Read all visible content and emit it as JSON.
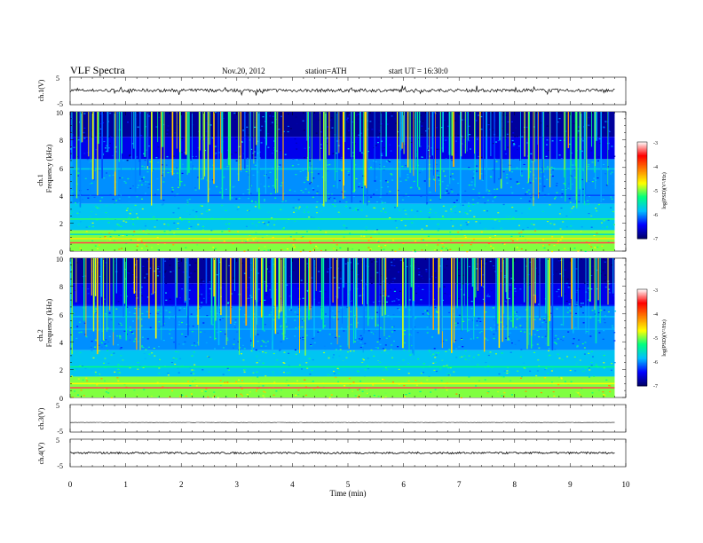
{
  "header": {
    "title": "VLF  Spectra",
    "date": "Nov.20, 2012",
    "station": "station=ATH",
    "start": "start  UT  =    16:30:0"
  },
  "colors": {
    "trace": "#000000",
    "spectrogram_background": "#000000",
    "colormap": [
      "#000066",
      "#0000ff",
      "#00bfff",
      "#00ff80",
      "#ffff00",
      "#ff8000",
      "#ff0000",
      "#ffffff"
    ]
  },
  "chart_data": [
    {
      "type": "line",
      "panel": "ch1-time-series",
      "ylabel": "ch.1(V)",
      "ylim": [
        -5,
        5
      ],
      "yticks": [
        "5",
        "-5"
      ],
      "baseline_value": 0.2,
      "noise_amplitude": 0.6,
      "spike_amplitude": 1.4,
      "xlim": [
        0,
        10
      ],
      "data_extent": 9.8
    },
    {
      "type": "heatmap",
      "panel": "ch1-spectrogram",
      "ylabel_top": "ch.1",
      "ylabel": "Frequency  (kHz)",
      "ylim": [
        0,
        10
      ],
      "yticks": [
        "0",
        "2",
        "4",
        "6",
        "8",
        "10"
      ],
      "xlim": [
        0,
        10
      ],
      "data_extent": 9.8,
      "colorbar": {
        "label": "log(PSD)(V²/Hz)",
        "range": [
          -7,
          -3
        ],
        "ticks": [
          "-3",
          "-4",
          "-5",
          "-6",
          "-7"
        ]
      },
      "bands": [
        {
          "f": 0.6,
          "level": -3.4
        },
        {
          "f": 0.9,
          "level": -4.6
        },
        {
          "f": 1.2,
          "level": -5.6
        },
        {
          "f": 2.3,
          "level": -5.2
        },
        {
          "f": 2.6,
          "level": -5.8
        },
        {
          "f": 4.0,
          "level": -6.2
        },
        {
          "f": 5.9,
          "level": -5.7
        },
        {
          "f": 6.3,
          "level": -6.0
        }
      ]
    },
    {
      "type": "heatmap",
      "panel": "ch2-spectrogram",
      "ylabel_top": "ch.2",
      "ylabel": "Frequency  (kHz)",
      "ylim": [
        0,
        10
      ],
      "yticks": [
        "0",
        "2",
        "4",
        "6",
        "8",
        "10"
      ],
      "xlim": [
        0,
        10
      ],
      "data_extent": 9.8,
      "colorbar": {
        "label": "log(PSD)(V²/Hz)",
        "range": [
          -7,
          -3
        ],
        "ticks": [
          "-3",
          "-4",
          "-5",
          "-6",
          "-7"
        ]
      },
      "bands": [
        {
          "f": 0.7,
          "level": -3.4
        },
        {
          "f": 1.0,
          "level": -4.7
        },
        {
          "f": 2.2,
          "level": -5.3
        },
        {
          "f": 2.6,
          "level": -5.8
        },
        {
          "f": 4.9,
          "level": -5.9
        },
        {
          "f": 5.8,
          "level": -5.8
        },
        {
          "f": 6.6,
          "level": -6.3
        }
      ]
    },
    {
      "type": "line",
      "panel": "ch3-time-series",
      "ylabel": "ch.3(V)",
      "ylim": [
        -5,
        5
      ],
      "yticks": [
        "5",
        "-5"
      ],
      "baseline_value": -1.5,
      "noise_amplitude": 0.05,
      "xlim": [
        0,
        10
      ],
      "data_extent": 9.8
    },
    {
      "type": "line",
      "panel": "ch4-time-series",
      "ylabel": "ch.4(V)",
      "ylim": [
        -5,
        5
      ],
      "yticks": [
        "5",
        "-5"
      ],
      "baseline_value": 0.0,
      "noise_amplitude": 0.35,
      "xlim": [
        0,
        10
      ],
      "data_extent": 9.8,
      "xlabel": "Time  (min)",
      "xticks": [
        "0",
        "1",
        "2",
        "3",
        "4",
        "5",
        "6",
        "7",
        "8",
        "9",
        "10"
      ]
    }
  ]
}
